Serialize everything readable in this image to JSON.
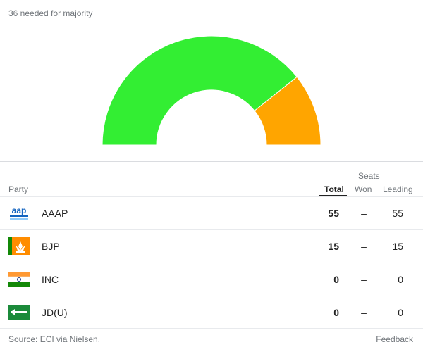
{
  "header": {
    "majority_text": "36 needed for majority"
  },
  "colors": {
    "aaap": "#33ee33",
    "bjp": "#ffa500",
    "inc": "#2e7d32",
    "jdu": "#1b8a3a"
  },
  "chart_data": {
    "type": "pie",
    "categories": [
      "AAAP",
      "BJP"
    ],
    "values": [
      55,
      15
    ],
    "total_seats": 70
  },
  "table": {
    "group_header": "Seats",
    "columns": {
      "party": "Party",
      "total": "Total",
      "won": "Won",
      "leading": "Leading"
    },
    "rows": [
      {
        "party": "AAAP",
        "logo": "aap-logo-icon",
        "total": "55",
        "won": "–",
        "leading": "55"
      },
      {
        "party": "BJP",
        "logo": "bjp-lotus-icon",
        "total": "15",
        "won": "–",
        "leading": "15"
      },
      {
        "party": "INC",
        "logo": "inc-flag-icon",
        "total": "0",
        "won": "–",
        "leading": "0"
      },
      {
        "party": "JD(U)",
        "logo": "jdu-arrow-icon",
        "total": "0",
        "won": "–",
        "leading": "0"
      }
    ]
  },
  "footer": {
    "source": "Source: ECI via Nielsen.",
    "feedback": "Feedback"
  }
}
